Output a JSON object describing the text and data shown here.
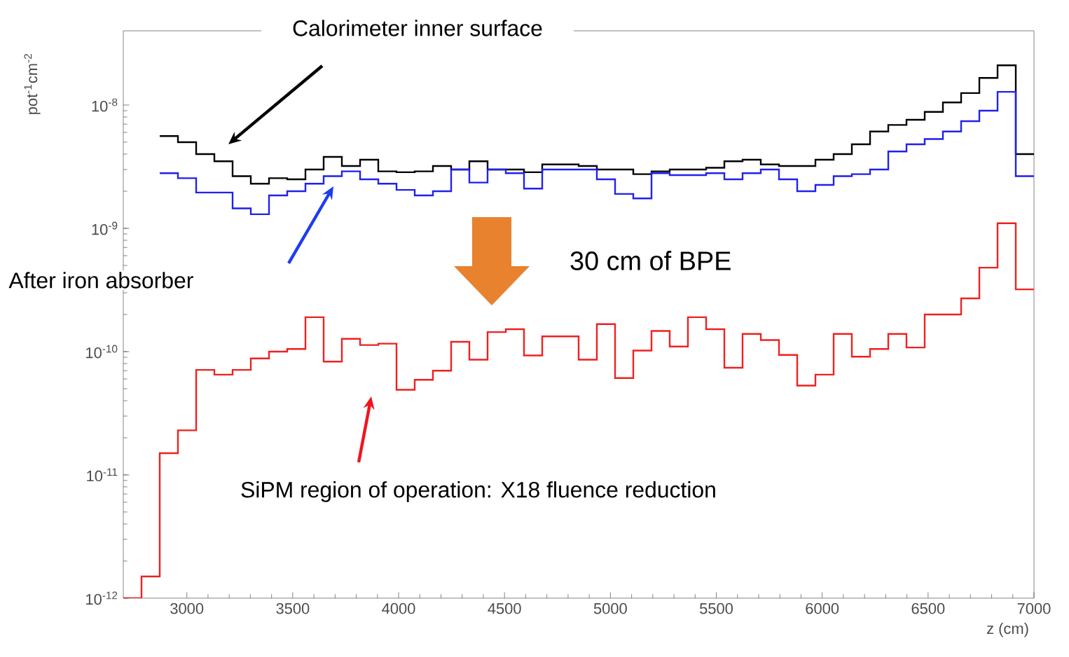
{
  "chart_data": {
    "type": "step",
    "xlabel": "z (cm)",
    "ylabel": "pot$^{-1}$cm$^{-2}$",
    "log": "y",
    "xlim": [
      2700,
      7000
    ],
    "ylim": [
      1e-12,
      4e-08
    ],
    "xticks": [
      3000,
      3500,
      4000,
      4500,
      5000,
      5500,
      6000,
      6500,
      7000
    ],
    "yticks": [
      {
        "value": 1e-12,
        "label": "10$^{-12}$"
      },
      {
        "value": 1e-11,
        "label": "10$^{-11}$"
      },
      {
        "value": 1e-10,
        "label": "10$^{-10}$"
      },
      {
        "value": 1e-09,
        "label": "10$^{-9}$"
      },
      {
        "value": 1e-08,
        "label": "10$^{-8}$"
      }
    ],
    "series": [
      {
        "color": "#000000",
        "x": [
          2872,
          2958,
          3044,
          3130,
          3216,
          3302,
          3388,
          3474,
          3560,
          3646,
          3732,
          3818,
          3904,
          3990,
          4076,
          4162,
          4248,
          4334,
          4420,
          4506,
          4592,
          4678,
          4764,
          4850,
          4936,
          5022,
          5108,
          5194,
          5280,
          5366,
          5452,
          5538,
          5624,
          5710,
          5796,
          5882,
          5968,
          6054,
          6140,
          6226,
          6312,
          6398,
          6484,
          6570,
          6656,
          6742,
          6828,
          6914,
          7000
        ],
        "values": [
          5.6e-09,
          5e-09,
          4e-09,
          3.5e-09,
          2.65e-09,
          2.3e-09,
          2.55e-09,
          2.5e-09,
          3e-09,
          3.8e-09,
          3.2e-09,
          3.6e-09,
          2.9e-09,
          2.85e-09,
          2.9e-09,
          3.2e-09,
          3e-09,
          3.5e-09,
          3e-09,
          3e-09,
          2.85e-09,
          3.3e-09,
          3.3e-09,
          3.2e-09,
          3e-09,
          3e-09,
          2.75e-09,
          2.9e-09,
          3e-09,
          3e-09,
          3.1e-09,
          3.5e-09,
          3.6e-09,
          3.3e-09,
          3.2e-09,
          3.2e-09,
          3.6e-09,
          4e-09,
          4.8e-09,
          6.1e-09,
          6.9e-09,
          7.6e-09,
          8.8e-09,
          1.05e-08,
          1.25e-08,
          1.66e-08,
          2.1e-08,
          4e-09,
          4e-09
        ]
      },
      {
        "color": "#2020f0",
        "x": [
          2872,
          2958,
          3044,
          3130,
          3216,
          3302,
          3388,
          3474,
          3560,
          3646,
          3732,
          3818,
          3904,
          3990,
          4076,
          4162,
          4248,
          4334,
          4420,
          4506,
          4592,
          4678,
          4764,
          4850,
          4936,
          5022,
          5108,
          5194,
          5280,
          5366,
          5452,
          5538,
          5624,
          5710,
          5796,
          5882,
          5968,
          6054,
          6140,
          6226,
          6312,
          6398,
          6484,
          6570,
          6656,
          6742,
          6828,
          6914,
          7000
        ],
        "values": [
          2.8e-09,
          2.55e-09,
          1.95e-09,
          1.95e-09,
          1.45e-09,
          1.3e-09,
          1.85e-09,
          2e-09,
          2.3e-09,
          2.65e-09,
          2.9e-09,
          2.5e-09,
          2.3e-09,
          2.05e-09,
          1.85e-09,
          2e-09,
          3e-09,
          2.35e-09,
          3e-09,
          2.8e-09,
          2.1e-09,
          3e-09,
          3e-09,
          3e-09,
          2.5e-09,
          1.9e-09,
          1.75e-09,
          2.8e-09,
          2.7e-09,
          2.7e-09,
          2.8e-09,
          2.5e-09,
          2.8e-09,
          3e-09,
          2.5e-09,
          2e-09,
          2.25e-09,
          2.65e-09,
          2.75e-09,
          3e-09,
          4.2e-09,
          4.8e-09,
          5.3e-09,
          6.1e-09,
          7.4e-09,
          9e-09,
          1.28e-08,
          2.65e-09,
          2.65e-09
        ]
      },
      {
        "color": "#f02020",
        "x": [
          2700,
          2786,
          2872,
          2958,
          3044,
          3130,
          3216,
          3302,
          3388,
          3474,
          3560,
          3646,
          3732,
          3818,
          3904,
          3990,
          4076,
          4162,
          4248,
          4334,
          4420,
          4506,
          4592,
          4678,
          4764,
          4850,
          4936,
          5022,
          5108,
          5194,
          5280,
          5366,
          5452,
          5538,
          5624,
          5710,
          5796,
          5882,
          5968,
          6054,
          6140,
          6226,
          6312,
          6398,
          6484,
          6570,
          6656,
          6742,
          6828,
          6914,
          7000
        ],
        "values": [
          1e-12,
          1.5e-12,
          1.5e-11,
          2.3e-11,
          7.1e-11,
          6.5e-11,
          7.1e-11,
          8.8e-11,
          1e-10,
          1.05e-10,
          1.9e-10,
          8.3e-11,
          1.27e-10,
          1.13e-10,
          1.16e-10,
          4.9e-11,
          5.9e-11,
          7e-11,
          1.2e-10,
          8.6e-11,
          1.44e-10,
          1.52e-10,
          9.3e-11,
          1.33e-10,
          1.33e-10,
          8.6e-11,
          1.67e-10,
          6.1e-11,
          1.02e-10,
          1.47e-10,
          1.1e-10,
          1.9e-10,
          1.52e-10,
          7.4e-11,
          1.39e-10,
          1.24e-10,
          9.4e-11,
          5.3e-11,
          6.5e-11,
          1.39e-10,
          9.1e-11,
          1.05e-10,
          1.39e-10,
          1.08e-10,
          2e-10,
          2e-10,
          2.7e-10,
          4.8e-10,
          1.1e-09,
          3.2e-10,
          3.2e-10
        ]
      }
    ],
    "annotations": [
      "Calorimeter inner surface",
      "After iron absorber",
      "30 cm of BPE",
      "SiPM region of operation: X18 fluence reduction"
    ]
  }
}
